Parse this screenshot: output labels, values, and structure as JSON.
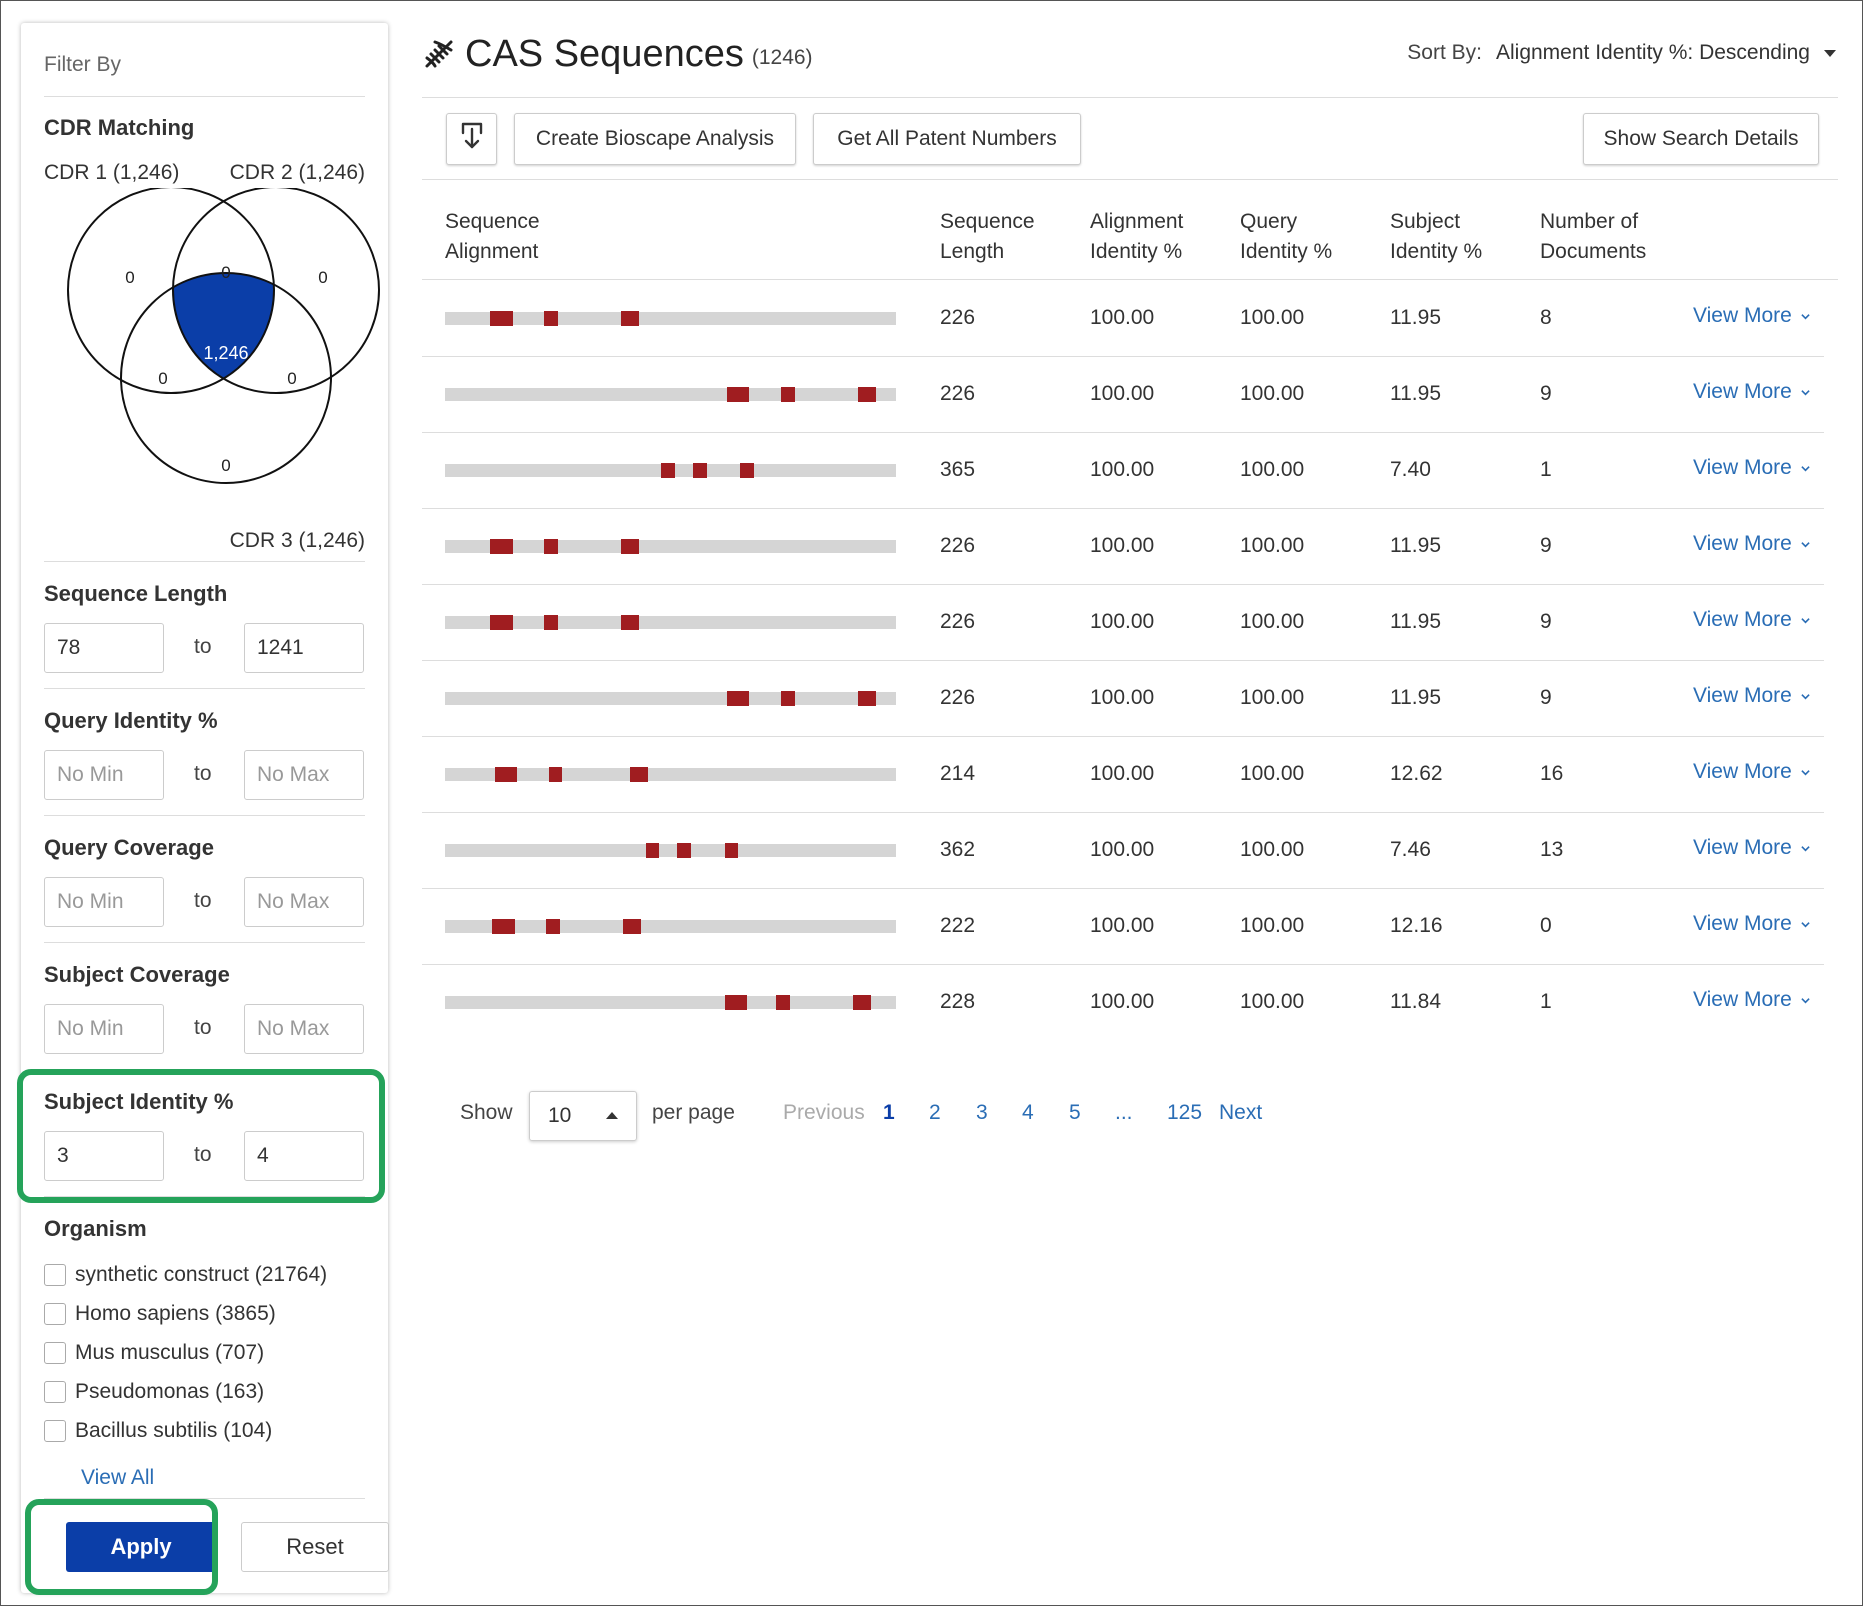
{
  "sidebar": {
    "filter_by": "Filter By",
    "cdr": {
      "title": "CDR Matching",
      "cdr1": "CDR 1 (1,246)",
      "cdr2": "CDR 2 (1,246)",
      "cdr3": "CDR 3 (1,246)",
      "venn": {
        "only1": "0",
        "one_two": "0",
        "only2": "0",
        "center": "1,246",
        "one_three": "0",
        "two_three": "0",
        "only3": "0",
        "highlight_color": "#0b3ea8"
      }
    },
    "sequence_length": {
      "title": "Sequence Length",
      "min": "78",
      "max": "1241",
      "to": "to"
    },
    "query_identity": {
      "title": "Query Identity %",
      "min_placeholder": "No Min",
      "max_placeholder": "No Max",
      "to": "to"
    },
    "query_coverage": {
      "title": "Query Coverage",
      "min_placeholder": "No Min",
      "max_placeholder": "No Max",
      "to": "to"
    },
    "subject_coverage": {
      "title": "Subject Coverage",
      "min_placeholder": "No Min",
      "max_placeholder": "No Max",
      "to": "to"
    },
    "subject_identity": {
      "title": "Subject Identity %",
      "min": "3",
      "max": "4",
      "to": "to"
    },
    "organism": {
      "title": "Organism",
      "items": [
        "synthetic construct (21764)",
        "Homo sapiens (3865)",
        "Mus musculus (707)",
        "Pseudomonas (163)",
        "Bacillus subtilis (104)"
      ],
      "view_all": "View All"
    },
    "apply": "Apply",
    "reset": "Reset"
  },
  "header": {
    "icon": "dna-icon",
    "title": "CAS Sequences",
    "count": "(1246)",
    "sort_label": "Sort By:",
    "sort_value": "Alignment Identity %: Descending"
  },
  "toolbar": {
    "download_icon": "download-icon",
    "create_analysis": "Create Bioscape Analysis",
    "patent_numbers": "Get All Patent Numbers",
    "search_details": "Show Search Details"
  },
  "table": {
    "headers": {
      "alignment": [
        "Sequence",
        "Alignment"
      ],
      "length": [
        "Sequence",
        "Length"
      ],
      "alignment_identity": [
        "Alignment",
        "Identity %"
      ],
      "query_identity": [
        "Query",
        "Identity %"
      ],
      "subject_identity": [
        "Subject",
        "Identity %"
      ],
      "documents": [
        "Number of",
        "Documents"
      ]
    },
    "view_more": "View More",
    "match_color": "#a01d20",
    "bar_color": "#d5d5d5",
    "rows": [
      {
        "length": "226",
        "alignment_identity": "100.00",
        "query_identity": "100.00",
        "subject_identity": "11.95",
        "documents": "8",
        "segments": [
          [
            0.1,
            0.05
          ],
          [
            0.22,
            0.03
          ],
          [
            0.39,
            0.04
          ]
        ]
      },
      {
        "length": "226",
        "alignment_identity": "100.00",
        "query_identity": "100.00",
        "subject_identity": "11.95",
        "documents": "9",
        "segments": [
          [
            0.625,
            0.05
          ],
          [
            0.745,
            0.03
          ],
          [
            0.915,
            0.04
          ]
        ]
      },
      {
        "length": "365",
        "alignment_identity": "100.00",
        "query_identity": "100.00",
        "subject_identity": "7.40",
        "documents": "1",
        "segments": [
          [
            0.48,
            0.03
          ],
          [
            0.55,
            0.03
          ],
          [
            0.655,
            0.03
          ]
        ]
      },
      {
        "length": "226",
        "alignment_identity": "100.00",
        "query_identity": "100.00",
        "subject_identity": "11.95",
        "documents": "9",
        "segments": [
          [
            0.1,
            0.05
          ],
          [
            0.22,
            0.03
          ],
          [
            0.39,
            0.04
          ]
        ]
      },
      {
        "length": "226",
        "alignment_identity": "100.00",
        "query_identity": "100.00",
        "subject_identity": "11.95",
        "documents": "9",
        "segments": [
          [
            0.1,
            0.05
          ],
          [
            0.22,
            0.03
          ],
          [
            0.39,
            0.04
          ]
        ]
      },
      {
        "length": "226",
        "alignment_identity": "100.00",
        "query_identity": "100.00",
        "subject_identity": "11.95",
        "documents": "9",
        "segments": [
          [
            0.625,
            0.05
          ],
          [
            0.745,
            0.03
          ],
          [
            0.915,
            0.04
          ]
        ]
      },
      {
        "length": "214",
        "alignment_identity": "100.00",
        "query_identity": "100.00",
        "subject_identity": "12.62",
        "documents": "16",
        "segments": [
          [
            0.11,
            0.05
          ],
          [
            0.23,
            0.03
          ],
          [
            0.41,
            0.04
          ]
        ]
      },
      {
        "length": "362",
        "alignment_identity": "100.00",
        "query_identity": "100.00",
        "subject_identity": "7.46",
        "documents": "13",
        "segments": [
          [
            0.445,
            0.03
          ],
          [
            0.515,
            0.03
          ],
          [
            0.62,
            0.03
          ]
        ]
      },
      {
        "length": "222",
        "alignment_identity": "100.00",
        "query_identity": "100.00",
        "subject_identity": "12.16",
        "documents": "0",
        "segments": [
          [
            0.105,
            0.05
          ],
          [
            0.225,
            0.03
          ],
          [
            0.395,
            0.04
          ]
        ]
      },
      {
        "length": "228",
        "alignment_identity": "100.00",
        "query_identity": "100.00",
        "subject_identity": "11.84",
        "documents": "1",
        "segments": [
          [
            0.62,
            0.05
          ],
          [
            0.735,
            0.03
          ],
          [
            0.905,
            0.04
          ]
        ]
      }
    ]
  },
  "pagination": {
    "show": "Show",
    "per_page_value": "10",
    "per_page": "per page",
    "previous": "Previous",
    "pages": [
      "1",
      "2",
      "3",
      "4",
      "5",
      "...",
      "125"
    ],
    "current": "1",
    "next": "Next"
  },
  "accent_color": "#25a35a"
}
